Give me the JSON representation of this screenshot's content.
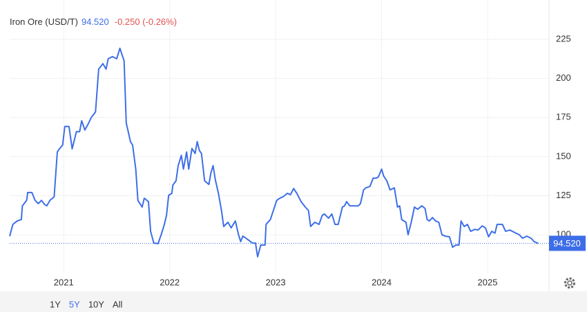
{
  "chart_data": {
    "type": "line",
    "title": "Iron Ore (USD/T)",
    "price": "94.520",
    "change": "-0.250 (-0.26%)",
    "color": "#3d6ee8",
    "price_color": "#3d6ee8",
    "change_color": "#e0524f",
    "grid": true,
    "xlim": [
      2020.49,
      2025.58
    ],
    "xticks": [
      2021,
      2022,
      2023,
      2024,
      2025
    ],
    "ylim": [
      75.3,
      248
    ],
    "yticks": [
      100,
      125,
      150,
      175,
      200,
      225
    ],
    "x": [
      2020.49,
      2020.52,
      2020.56,
      2020.6,
      2020.61,
      2020.65,
      2020.66,
      2020.7,
      2020.73,
      2020.76,
      2020.79,
      2020.82,
      2020.84,
      2020.87,
      2020.91,
      2020.94,
      2020.96,
      2020.99,
      2021.01,
      2021.05,
      2021.08,
      2021.12,
      2021.15,
      2021.17,
      2021.2,
      2021.23,
      2021.26,
      2021.3,
      2021.33,
      2021.37,
      2021.4,
      2021.42,
      2021.46,
      2021.5,
      2021.53,
      2021.57,
      2021.59,
      2021.63,
      2021.65,
      2021.68,
      2021.7,
      2021.74,
      2021.76,
      2021.8,
      2021.82,
      2021.85,
      2021.89,
      2021.92,
      2021.95,
      2021.97,
      2021.99,
      2022.02,
      2022.03,
      2022.06,
      2022.08,
      2022.11,
      2022.13,
      2022.16,
      2022.18,
      2022.21,
      2022.24,
      2022.26,
      2022.28,
      2022.3,
      2022.33,
      2022.37,
      2022.39,
      2022.41,
      2022.43,
      2022.46,
      2022.49,
      2022.51,
      2022.55,
      2022.58,
      2022.62,
      2022.65,
      2022.67,
      2022.69,
      2022.73,
      2022.78,
      2022.81,
      2022.83,
      2022.86,
      2022.9,
      2022.91,
      2022.95,
      2023.01,
      2023.04,
      2023.07,
      2023.11,
      2023.14,
      2023.17,
      2023.2,
      2023.24,
      2023.28,
      2023.31,
      2023.33,
      2023.37,
      2023.41,
      2023.44,
      2023.46,
      2023.5,
      2023.53,
      2023.56,
      2023.59,
      2023.63,
      2023.65,
      2023.67,
      2023.7,
      2023.74,
      2023.78,
      2023.8,
      2023.83,
      2023.85,
      2023.89,
      2023.92,
      2023.95,
      2023.97,
      2024.0,
      2024.02,
      2024.05,
      2024.08,
      2024.12,
      2024.15,
      2024.17,
      2024.19,
      2024.23,
      2024.25,
      2024.28,
      2024.31,
      2024.34,
      2024.38,
      2024.41,
      2024.43,
      2024.45,
      2024.48,
      2024.51,
      2024.54,
      2024.57,
      2024.6,
      2024.64,
      2024.67,
      2024.7,
      2024.73,
      2024.75,
      2024.78,
      2024.81,
      2024.84,
      2024.88,
      2024.91,
      2024.95,
      2024.98,
      2025.01,
      2025.04,
      2025.07,
      2025.09,
      2025.14,
      2025.17,
      2025.21,
      2025.26,
      2025.3,
      2025.33,
      2025.37,
      2025.41,
      2025.44,
      2025.47,
      2025.48
    ],
    "values": [
      99,
      106.6,
      108.8,
      109.7,
      118.5,
      122,
      127,
      127,
      122,
      119.9,
      122,
      119.4,
      118.5,
      122,
      124.3,
      153,
      155,
      157.4,
      169.3,
      169.3,
      155,
      166,
      166,
      172.9,
      167,
      170.7,
      175,
      178.6,
      206,
      209.5,
      206,
      212.6,
      214,
      212.6,
      219.3,
      211.3,
      171.6,
      159.6,
      157.4,
      142,
      122,
      117.7,
      123.4,
      121.2,
      102.2,
      94.7,
      94.3,
      100,
      106.6,
      112.4,
      125.2,
      126.5,
      131.8,
      134.5,
      144.2,
      150.8,
      142,
      153,
      142,
      155.2,
      152,
      159.6,
      153.9,
      152,
      134.5,
      132.2,
      139.8,
      144.2,
      135.4,
      126.5,
      115,
      105.3,
      108,
      104.4,
      108.8,
      100,
      95.6,
      99.1,
      97.3,
      94.7,
      94.7,
      85.9,
      93.4,
      93.4,
      106.6,
      109.7,
      122,
      123.4,
      124.3,
      126.5,
      125.6,
      129.6,
      126.5,
      121.2,
      117.7,
      115.5,
      105.3,
      108,
      106.6,
      112.4,
      113.3,
      110.6,
      113.3,
      106.6,
      106.6,
      117.7,
      118.5,
      121.2,
      118.5,
      118.5,
      118.5,
      119.9,
      128.7,
      130,
      130.9,
      136.2,
      136.2,
      137.1,
      142,
      137.5,
      134.5,
      128.7,
      130,
      117.7,
      118.5,
      109.7,
      108,
      100,
      108,
      117.7,
      116.3,
      118.5,
      116.8,
      109.7,
      108.8,
      111,
      108.8,
      108,
      100,
      99.1,
      98.7,
      92,
      93.4,
      93.4,
      108.8,
      105.3,
      106.6,
      102.2,
      103.5,
      103,
      105.7,
      104.4,
      98.7,
      102.2,
      101,
      106.6,
      106.6,
      102.2,
      103,
      101.3,
      100,
      97.8,
      99.1,
      97.8,
      95.6,
      94.7,
      94.52
    ],
    "ranges": [
      "1Y",
      "5Y",
      "10Y",
      "All"
    ],
    "active_range": "5Y"
  }
}
